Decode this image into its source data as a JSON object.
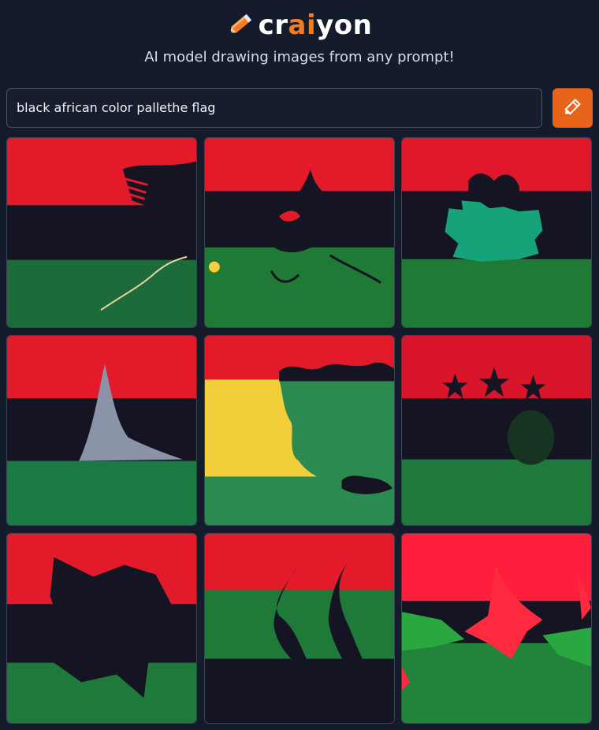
{
  "brand": {
    "pre": "cr",
    "ai": "ai",
    "post": "yon",
    "accent": "#f47b20"
  },
  "tagline": "AI model drawing images from any prompt!",
  "search": {
    "value": "black african color pallethe flag"
  },
  "draw_button": {
    "icon": "pencil-draw-icon",
    "color": "#e8641b"
  },
  "results": [
    {
      "name": "result-image-1",
      "description_colors": [
        "red",
        "black",
        "green"
      ]
    },
    {
      "name": "result-image-2",
      "description_colors": [
        "red",
        "black",
        "green"
      ]
    },
    {
      "name": "result-image-3",
      "description_colors": [
        "red",
        "black",
        "green"
      ]
    },
    {
      "name": "result-image-4",
      "description_colors": [
        "red",
        "black",
        "green"
      ]
    },
    {
      "name": "result-image-5",
      "description_colors": [
        "red",
        "yellow",
        "green"
      ]
    },
    {
      "name": "result-image-6",
      "description_colors": [
        "red",
        "black",
        "green"
      ]
    },
    {
      "name": "result-image-7",
      "description_colors": [
        "red",
        "black",
        "green"
      ]
    },
    {
      "name": "result-image-8",
      "description_colors": [
        "red",
        "green",
        "black"
      ]
    },
    {
      "name": "result-image-9",
      "description_colors": [
        "red",
        "black",
        "green"
      ]
    }
  ]
}
